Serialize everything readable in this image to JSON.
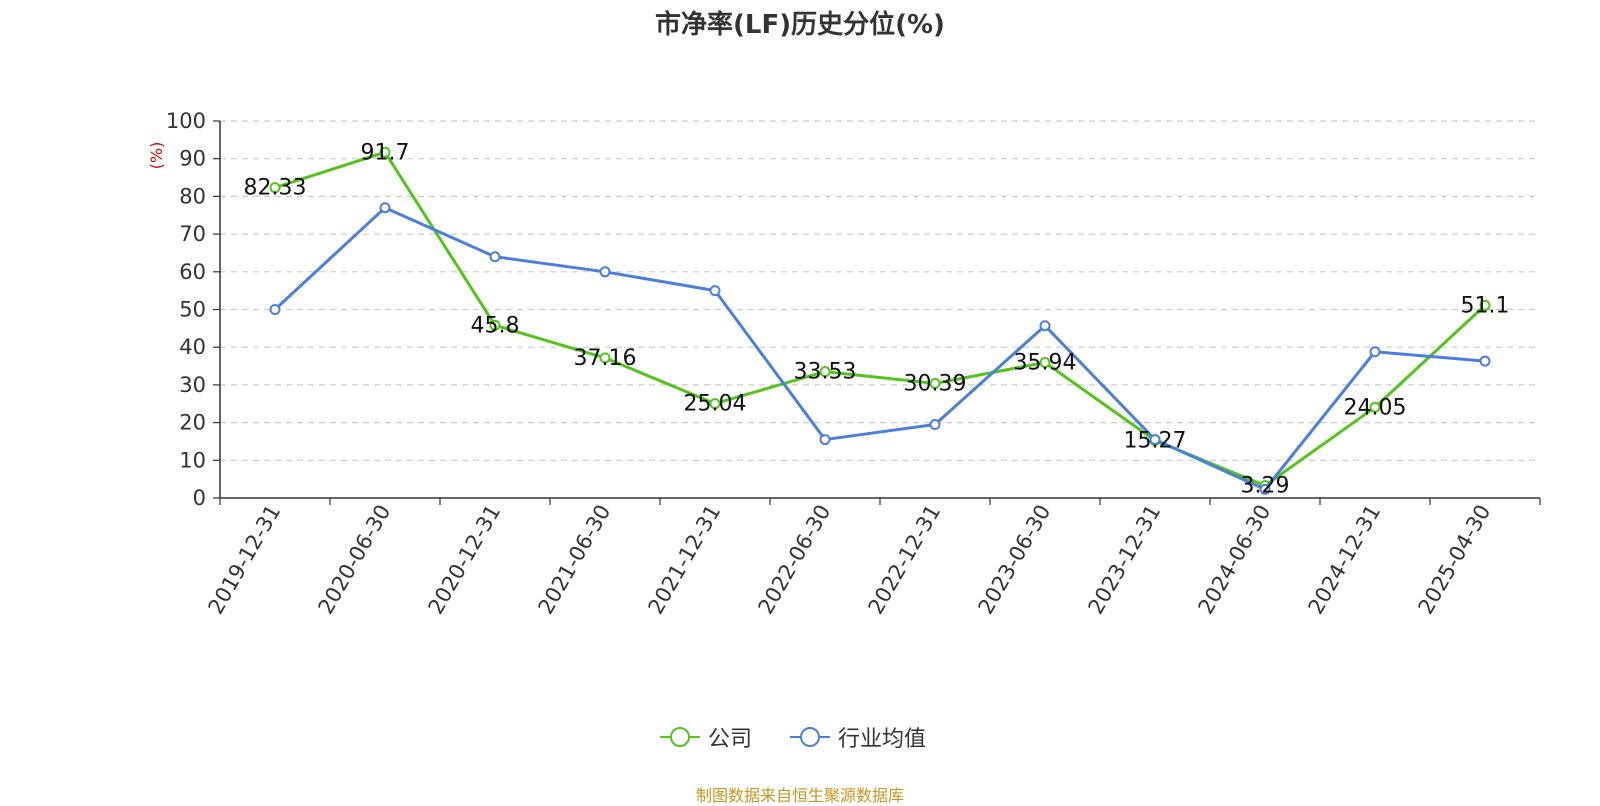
{
  "chart_data": {
    "type": "line",
    "title": "市净率(LF)历史分位(%)",
    "ylabel": "(%)",
    "xlabel": "",
    "ylim": [
      0,
      100
    ],
    "yticks": [
      "0",
      "10",
      "20",
      "30",
      "40",
      "50",
      "60",
      "70",
      "80",
      "90",
      "100"
    ],
    "categories": [
      "2019-12-31",
      "2020-06-30",
      "2020-12-31",
      "2021-06-30",
      "2021-12-31",
      "2022-06-30",
      "2022-12-31",
      "2023-06-30",
      "2023-12-31",
      "2024-06-30",
      "2024-12-31",
      "2025-04-30"
    ],
    "grid": true,
    "legend_position": "bottom-center",
    "series": [
      {
        "name": "公司",
        "color": "#52c41a",
        "values": [
          82.33,
          91.7,
          45.8,
          37.16,
          25.04,
          33.53,
          30.39,
          35.94,
          15.27,
          3.29,
          24.05,
          51.1
        ],
        "labels": [
          "82.33",
          "91.7",
          "45.8",
          "37.16",
          "25.04",
          "33.53",
          "30.39",
          "35.94",
          "15.27",
          "3.29",
          "24.05",
          "51.1"
        ]
      },
      {
        "name": "行业均值",
        "color": "#4a7fdc",
        "values": [
          50,
          77,
          64,
          60,
          55,
          15.5,
          19.5,
          45.7,
          15.5,
          2.3,
          38.8,
          36.3
        ]
      }
    ]
  },
  "source": "制图数据来自恒生聚源数据库",
  "colors": {
    "axis": "#333333",
    "grid": "#cccccc",
    "ylabel": "#e00000"
  }
}
